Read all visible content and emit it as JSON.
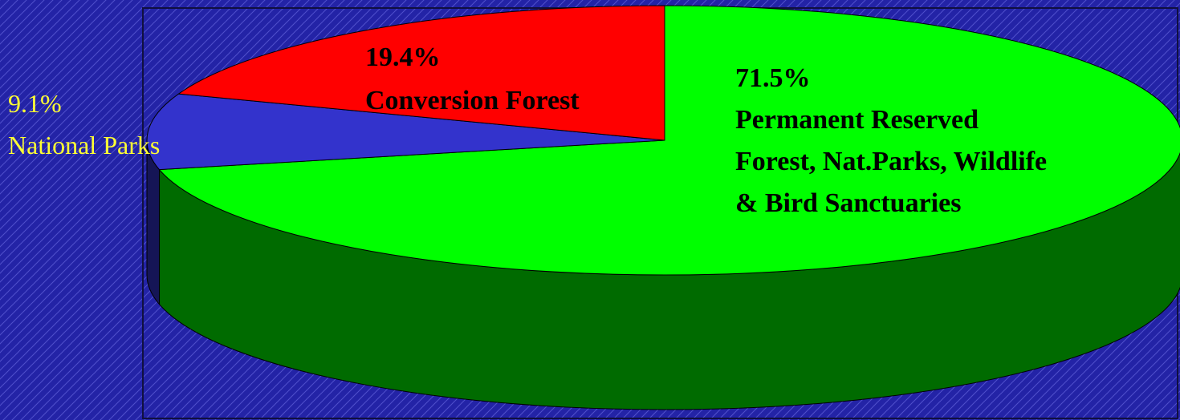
{
  "chart_data": {
    "type": "pie",
    "categories": [
      "Permanent Reserved\nForest, Nat.Parks, Wildlife\n& Bird Sanctuaries",
      "National Parks",
      "Conversion Forest"
    ],
    "values": [
      71.5,
      9.1,
      19.4
    ],
    "value_labels": [
      "71.5%",
      "9.1%",
      "19.4%"
    ],
    "colors": [
      "#00ff00",
      "#3333cc",
      "#ff0000"
    ]
  }
}
